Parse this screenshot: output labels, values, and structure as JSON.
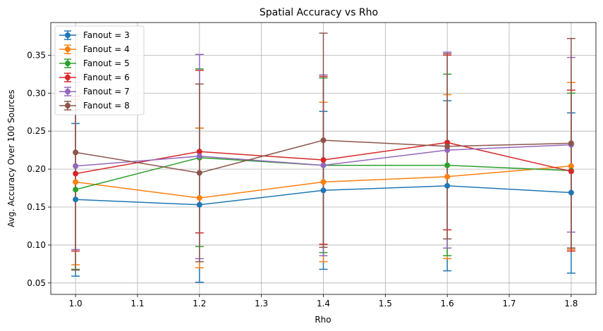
{
  "chart_data": {
    "type": "line",
    "title": "Spatial Accuracy vs Rho",
    "xlabel": "Rho",
    "ylabel": "Avg. Accuracy Over 100 Sources",
    "x": [
      1.0,
      1.2,
      1.4,
      1.6,
      1.8
    ],
    "xticks": [
      "1.0",
      "1.1",
      "1.2",
      "1.3",
      "1.4",
      "1.5",
      "1.6",
      "1.7",
      "1.8"
    ],
    "yticks": [
      "0.05",
      "0.10",
      "0.15",
      "0.20",
      "0.25",
      "0.30",
      "0.35"
    ],
    "xlim": [
      0.96,
      1.84
    ],
    "ylim": [
      0.035,
      0.393
    ],
    "grid": true,
    "legend_position": "top-left",
    "series": [
      {
        "name": "Fanout = 3",
        "color": "#1f77b4",
        "values": [
          0.16,
          0.153,
          0.172,
          0.178,
          0.169
        ],
        "err_low": [
          0.059,
          0.051,
          0.068,
          0.066,
          0.063
        ],
        "err_high": [
          0.26,
          0.254,
          0.276,
          0.29,
          0.274
        ]
      },
      {
        "name": "Fanout = 4",
        "color": "#ff7f0e",
        "values": [
          0.183,
          0.162,
          0.183,
          0.19,
          0.204
        ],
        "err_low": [
          0.074,
          0.07,
          0.078,
          0.082,
          0.094
        ],
        "err_high": [
          0.292,
          0.254,
          0.288,
          0.298,
          0.314
        ]
      },
      {
        "name": "Fanout = 5",
        "color": "#2ca02c",
        "values": [
          0.173,
          0.215,
          0.205,
          0.205,
          0.198
        ],
        "err_low": [
          0.068,
          0.098,
          0.09,
          0.086,
          0.096
        ],
        "err_high": [
          0.278,
          0.332,
          0.32,
          0.325,
          0.3
        ]
      },
      {
        "name": "Fanout = 6",
        "color": "#d62728",
        "values": [
          0.194,
          0.223,
          0.212,
          0.235,
          0.197
        ],
        "err_low": [
          0.092,
          0.116,
          0.101,
          0.12,
          0.092
        ],
        "err_high": [
          0.296,
          0.33,
          0.322,
          0.35,
          0.304
        ]
      },
      {
        "name": "Fanout = 7",
        "color": "#9467bd",
        "values": [
          0.204,
          0.217,
          0.205,
          0.225,
          0.232
        ],
        "err_low": [
          0.094,
          0.082,
          0.086,
          0.096,
          0.117
        ],
        "err_high": [
          0.314,
          0.351,
          0.324,
          0.354,
          0.347
        ]
      },
      {
        "name": "Fanout = 8",
        "color": "#8c564b",
        "values": [
          0.222,
          0.195,
          0.238,
          0.23,
          0.234
        ],
        "err_low": [
          0.067,
          0.078,
          0.097,
          0.108,
          0.096
        ],
        "err_high": [
          0.377,
          0.312,
          0.379,
          0.352,
          0.372
        ]
      }
    ]
  }
}
